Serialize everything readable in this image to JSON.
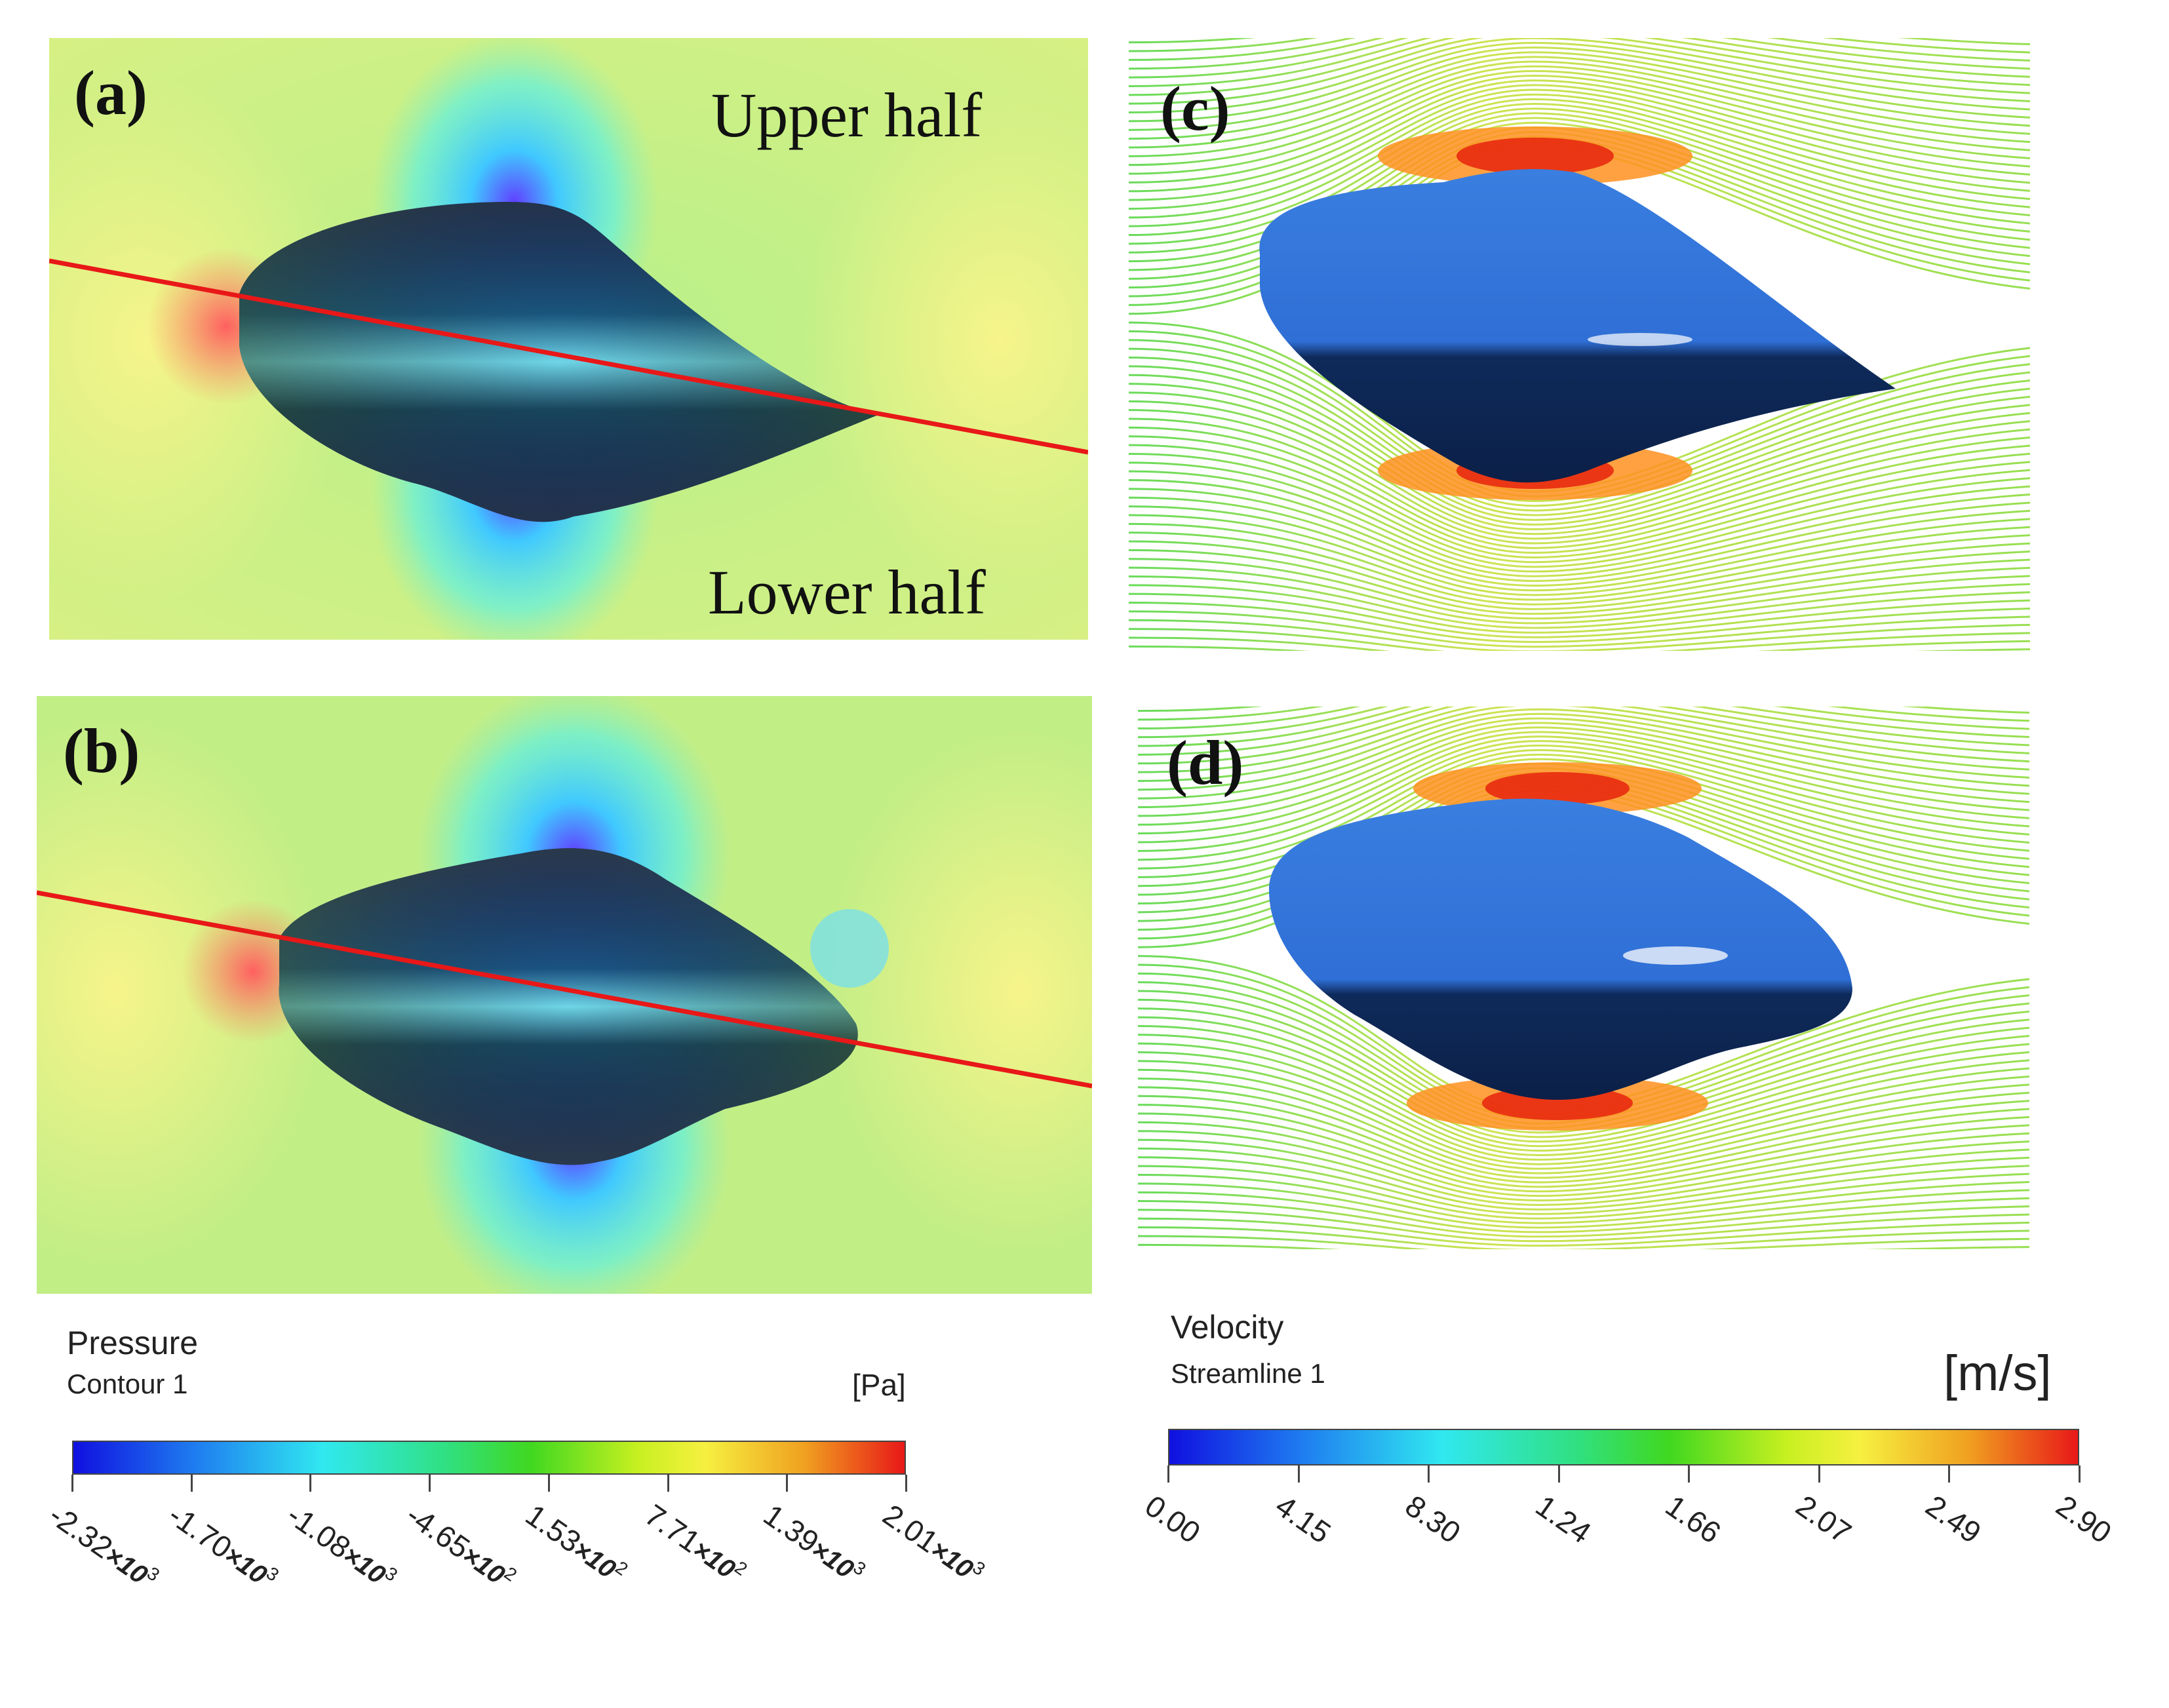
{
  "panels": {
    "a": {
      "label": "(a)",
      "upper_label": "Upper half",
      "lower_label": "Lower half"
    },
    "b": {
      "label": "(b)"
    },
    "c": {
      "label": "(c)"
    },
    "d": {
      "label": "(d)"
    }
  },
  "pressure_legend": {
    "title": "Pressure",
    "subtitle": "Contour 1",
    "unit": "[Pa]",
    "ticks": [
      {
        "mantissa": "-2.32",
        "exp": "3"
      },
      {
        "mantissa": "-1.70",
        "exp": "3"
      },
      {
        "mantissa": "-1.08",
        "exp": "3"
      },
      {
        "mantissa": "-4.65",
        "exp": "2"
      },
      {
        "mantissa": "1.53",
        "exp": "2"
      },
      {
        "mantissa": "7.71",
        "exp": "2"
      },
      {
        "mantissa": "1.39",
        "exp": "3"
      },
      {
        "mantissa": "2.01",
        "exp": "3"
      }
    ]
  },
  "velocity_legend": {
    "title": "Velocity",
    "subtitle": "Streamline 1",
    "unit": "[m/s]",
    "ticks": [
      "0.00",
      "4.15",
      "8.30",
      "1.24",
      "1.66",
      "2.07",
      "2.49",
      "2.90"
    ]
  },
  "colors": {
    "background_field": "#c8f07a",
    "body_blue": "#2f6fd6",
    "cut_line": "#e81818"
  }
}
